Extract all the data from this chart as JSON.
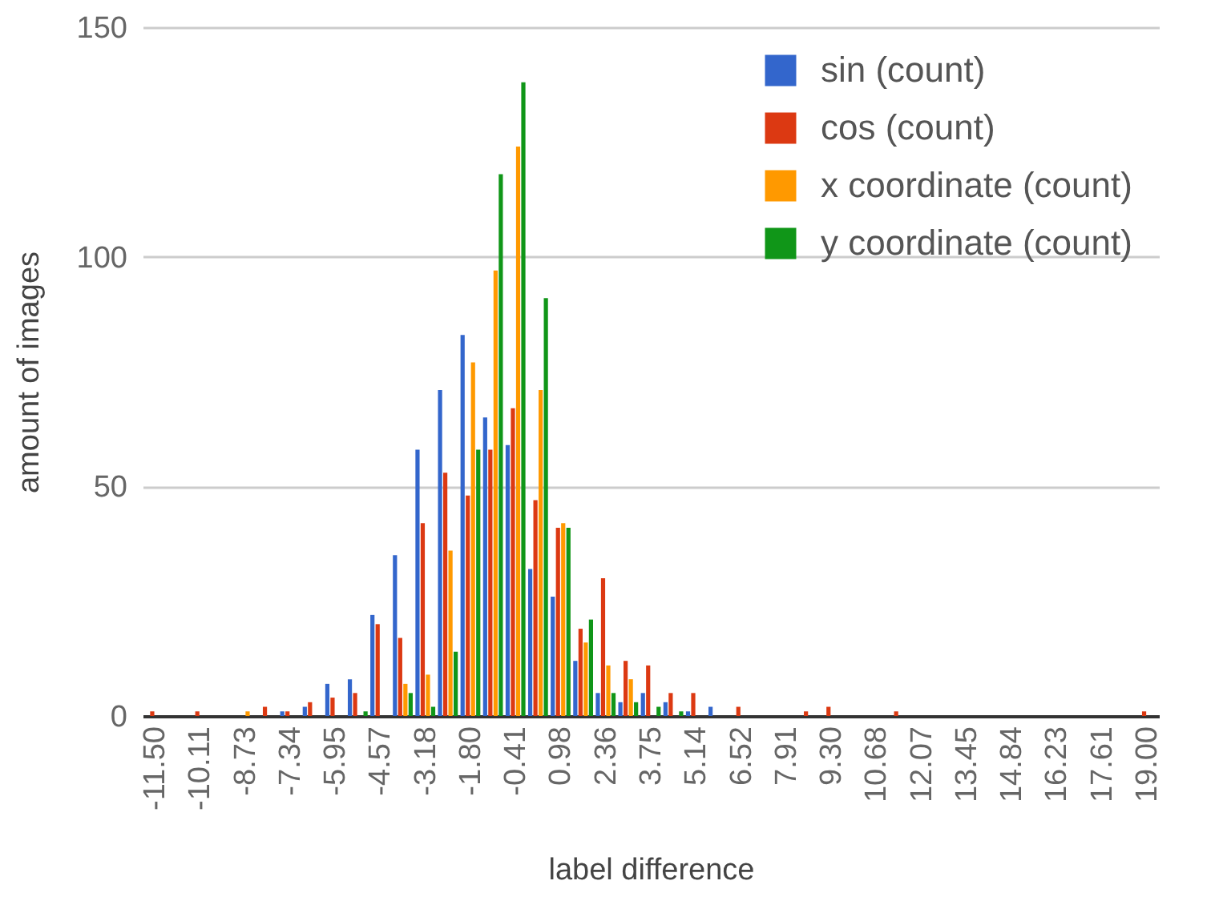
{
  "chart_data": {
    "type": "bar",
    "xlabel": "label difference",
    "ylabel": "amount of images",
    "categories": [
      "-11.50",
      null,
      "-10.11",
      null,
      "-8.73",
      null,
      "-7.34",
      null,
      "-5.95",
      null,
      "-4.57",
      null,
      "-3.18",
      null,
      "-1.80",
      null,
      "-0.41",
      null,
      "0.98",
      null,
      "2.36",
      null,
      "3.75",
      null,
      "5.14",
      null,
      "6.52",
      null,
      "7.91",
      null,
      "9.30",
      null,
      "10.68",
      null,
      "12.07",
      null,
      "13.45",
      null,
      "14.84",
      null,
      "16.23",
      null,
      "17.61",
      null,
      "19.00"
    ],
    "series": [
      {
        "name": "sin (count)",
        "color": "#3366cc",
        "values": [
          0,
          0,
          0,
          0,
          0,
          0,
          1,
          2,
          7,
          8,
          22,
          35,
          58,
          71,
          83,
          65,
          59,
          32,
          26,
          12,
          5,
          3,
          5,
          3,
          1,
          2,
          0,
          0,
          0,
          0,
          0,
          0,
          0,
          0,
          0,
          0,
          0,
          0,
          0,
          0,
          0,
          0,
          0,
          0,
          0
        ]
      },
      {
        "name": "cos  (count)",
        "color": "#dc3912",
        "values": [
          1,
          0,
          1,
          0,
          0,
          2,
          1,
          3,
          4,
          5,
          20,
          17,
          42,
          53,
          48,
          58,
          67,
          47,
          41,
          19,
          30,
          12,
          11,
          5,
          5,
          0,
          2,
          0,
          0,
          1,
          2,
          0,
          0,
          1,
          0,
          0,
          0,
          0,
          0,
          0,
          0,
          0,
          0,
          0,
          1
        ]
      },
      {
        "name": "x coordinate (count)",
        "color": "#ff9900",
        "values": [
          0,
          0,
          0,
          0,
          1,
          0,
          0,
          0,
          0,
          0,
          0,
          7,
          9,
          36,
          77,
          97,
          124,
          71,
          42,
          16,
          11,
          8,
          0,
          0,
          0,
          0,
          0,
          0,
          0,
          0,
          0,
          0,
          0,
          0,
          0,
          0,
          0,
          0,
          0,
          0,
          0,
          0,
          0,
          0,
          0
        ]
      },
      {
        "name": "y coordinate (count)",
        "color": "#109618",
        "values": [
          0,
          0,
          0,
          0,
          0,
          0,
          0,
          0,
          0,
          1,
          0,
          5,
          2,
          14,
          58,
          118,
          138,
          91,
          41,
          21,
          5,
          3,
          2,
          1,
          0,
          0,
          0,
          0,
          0,
          0,
          0,
          0,
          0,
          0,
          0,
          0,
          0,
          0,
          0,
          0,
          0,
          0,
          0,
          0,
          0
        ]
      }
    ],
    "ylim": [
      0,
      150
    ],
    "yticks": [
      0,
      50,
      100,
      150
    ],
    "grid": "y",
    "legend": "top right"
  }
}
